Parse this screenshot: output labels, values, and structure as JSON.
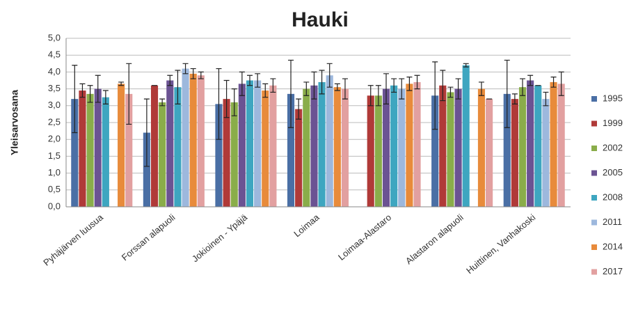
{
  "chart_data": {
    "type": "bar",
    "title": "Hauki",
    "y_label": "Yleisarvosana",
    "categories": [
      "Pyhäjärven luusua",
      "Forssan alapuoli",
      "Jokioinen - Ypäjä",
      "Loimaa",
      "Loimaa-Alastaro",
      "Alastaron alapuoli",
      "Huittinen, Vanhakoski"
    ],
    "series": [
      {
        "name": "1995",
        "color": "#4a6fa5",
        "values": [
          3.2,
          2.2,
          3.05,
          3.35,
          null,
          3.3,
          3.35
        ],
        "errors": [
          1.0,
          1.0,
          1.05,
          1.0,
          null,
          1.0,
          1.0
        ]
      },
      {
        "name": "1999",
        "color": "#b03a38",
        "values": [
          3.45,
          3.6,
          3.2,
          2.9,
          3.3,
          3.6,
          3.2
        ],
        "errors": [
          0.2,
          0,
          0.55,
          0.3,
          0.3,
          0.45,
          0.15
        ]
      },
      {
        "name": "2002",
        "color": "#8aad4a",
        "values": [
          3.35,
          3.1,
          3.1,
          3.5,
          3.3,
          3.4,
          3.55
        ],
        "errors": [
          0.25,
          0.1,
          0.4,
          0.2,
          0.3,
          0.15,
          0.25
        ]
      },
      {
        "name": "2005",
        "color": "#6b5393",
        "values": [
          3.5,
          3.75,
          3.65,
          3.6,
          3.5,
          3.5,
          3.75
        ],
        "errors": [
          0.4,
          0.15,
          0.35,
          0.4,
          0.45,
          0.3,
          0.15
        ]
      },
      {
        "name": "2008",
        "color": "#3ea6c0",
        "values": [
          3.25,
          3.55,
          3.75,
          3.7,
          3.6,
          4.2,
          3.6
        ],
        "errors": [
          0.2,
          0.5,
          0.15,
          0.35,
          0.2,
          0.05,
          0
        ]
      },
      {
        "name": "2011",
        "color": "#9db8dd",
        "values": [
          null,
          4.1,
          3.75,
          3.9,
          3.5,
          null,
          3.2
        ],
        "errors": [
          null,
          0.15,
          0.2,
          0.35,
          0.3,
          null,
          0.2
        ]
      },
      {
        "name": "2014",
        "color": "#e88b3b",
        "values": [
          3.65,
          3.95,
          3.45,
          3.55,
          3.65,
          3.5,
          3.7
        ],
        "errors": [
          0.05,
          0.15,
          0.2,
          0.1,
          0.2,
          0.2,
          0.15
        ]
      },
      {
        "name": "2017",
        "color": "#e2a0a0",
        "values": [
          3.35,
          3.9,
          3.6,
          3.5,
          3.7,
          3.2,
          3.65
        ],
        "errors": [
          0.9,
          0.1,
          0.2,
          0.3,
          0.2,
          0,
          0.35
        ]
      }
    ],
    "ylim": [
      0,
      5
    ],
    "yticks": [
      {
        "value": 0,
        "label": "0,0"
      },
      {
        "value": 0.5,
        "label": "0,5"
      },
      {
        "value": 1,
        "label": "1,0"
      },
      {
        "value": 1.5,
        "label": "1,5"
      },
      {
        "value": 2,
        "label": "2,0"
      },
      {
        "value": 2.5,
        "label": "2,5"
      },
      {
        "value": 3,
        "label": "3,0"
      },
      {
        "value": 3.5,
        "label": "3,5"
      },
      {
        "value": 4,
        "label": "4,0"
      },
      {
        "value": 4.5,
        "label": "4,5"
      },
      {
        "value": 5,
        "label": "5,0"
      }
    ],
    "grid": true,
    "legend": "right"
  }
}
